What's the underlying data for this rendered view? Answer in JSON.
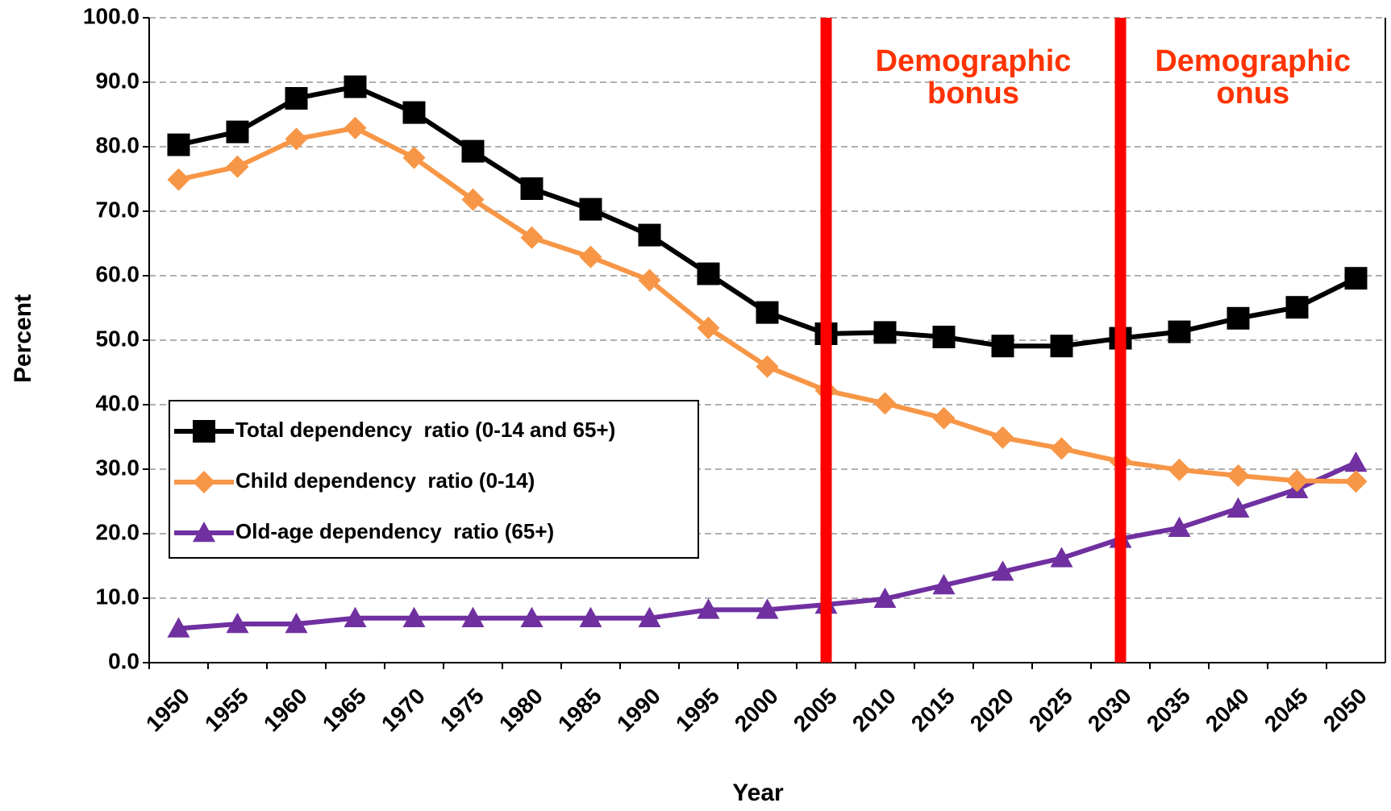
{
  "chart_data": {
    "type": "line",
    "x_label": "Year",
    "y_label": "Percent",
    "categories": [
      "1950",
      "1955",
      "1960",
      "1965",
      "1970",
      "1975",
      "1980",
      "1985",
      "1990",
      "1995",
      "2000",
      "2005",
      "2010",
      "2015",
      "2020",
      "2025",
      "2030",
      "2035",
      "2040",
      "2045",
      "2050"
    ],
    "series": [
      {
        "name": "Total dependency  ratio (0-14 and 65+)",
        "color": "#000000",
        "marker": "square",
        "values": [
          80.3,
          82.3,
          87.5,
          89.3,
          85.3,
          79.3,
          73.5,
          70.3,
          66.3,
          60.3,
          54.3,
          51.0,
          51.2,
          50.5,
          49.1,
          49.1,
          50.3,
          51.3,
          53.4,
          55.1,
          59.6
        ]
      },
      {
        "name": "Child dependency  ratio (0-14)",
        "color": "#f79646",
        "marker": "diamond",
        "values": [
          74.9,
          76.9,
          81.2,
          82.9,
          78.3,
          71.8,
          65.9,
          62.9,
          59.3,
          51.9,
          45.9,
          42.2,
          40.2,
          37.9,
          34.9,
          33.2,
          31.2,
          29.9,
          29.0,
          28.2,
          28.1
        ]
      },
      {
        "name": "Old-age dependency  ratio (65+)",
        "color": "#7030a0",
        "marker": "triangle",
        "values": [
          5.3,
          6.0,
          6.0,
          6.9,
          6.9,
          6.9,
          6.9,
          6.9,
          6.9,
          8.2,
          8.2,
          9.0,
          9.9,
          12.0,
          14.1,
          16.2,
          19.2,
          20.9,
          23.9,
          26.9,
          31.0
        ]
      }
    ],
    "ylim": [
      0,
      100
    ],
    "yticks": [
      {
        "value": 0,
        "label": "0.0"
      },
      {
        "value": 10,
        "label": "10.0"
      },
      {
        "value": 20,
        "label": "20.0"
      },
      {
        "value": 30,
        "label": "30.0"
      },
      {
        "value": 40,
        "label": "40.0"
      },
      {
        "value": 50,
        "label": "50.0"
      },
      {
        "value": 60,
        "label": "60.0"
      },
      {
        "value": 70,
        "label": "70.0"
      },
      {
        "value": 80,
        "label": "80.0"
      },
      {
        "value": 90,
        "label": "90.0"
      },
      {
        "value": 100,
        "label": "100.0"
      }
    ],
    "grid": true,
    "legend": "lower left",
    "vertical_lines": [
      {
        "category": "2005",
        "color": "#ff0000",
        "text": [
          "Demographic",
          "bonus"
        ],
        "text_color": "#ff3300"
      },
      {
        "category": "2030",
        "color": "#ff0000",
        "text": [
          "Demographic",
          "onus"
        ],
        "text_color": "#ff3300"
      }
    ]
  }
}
